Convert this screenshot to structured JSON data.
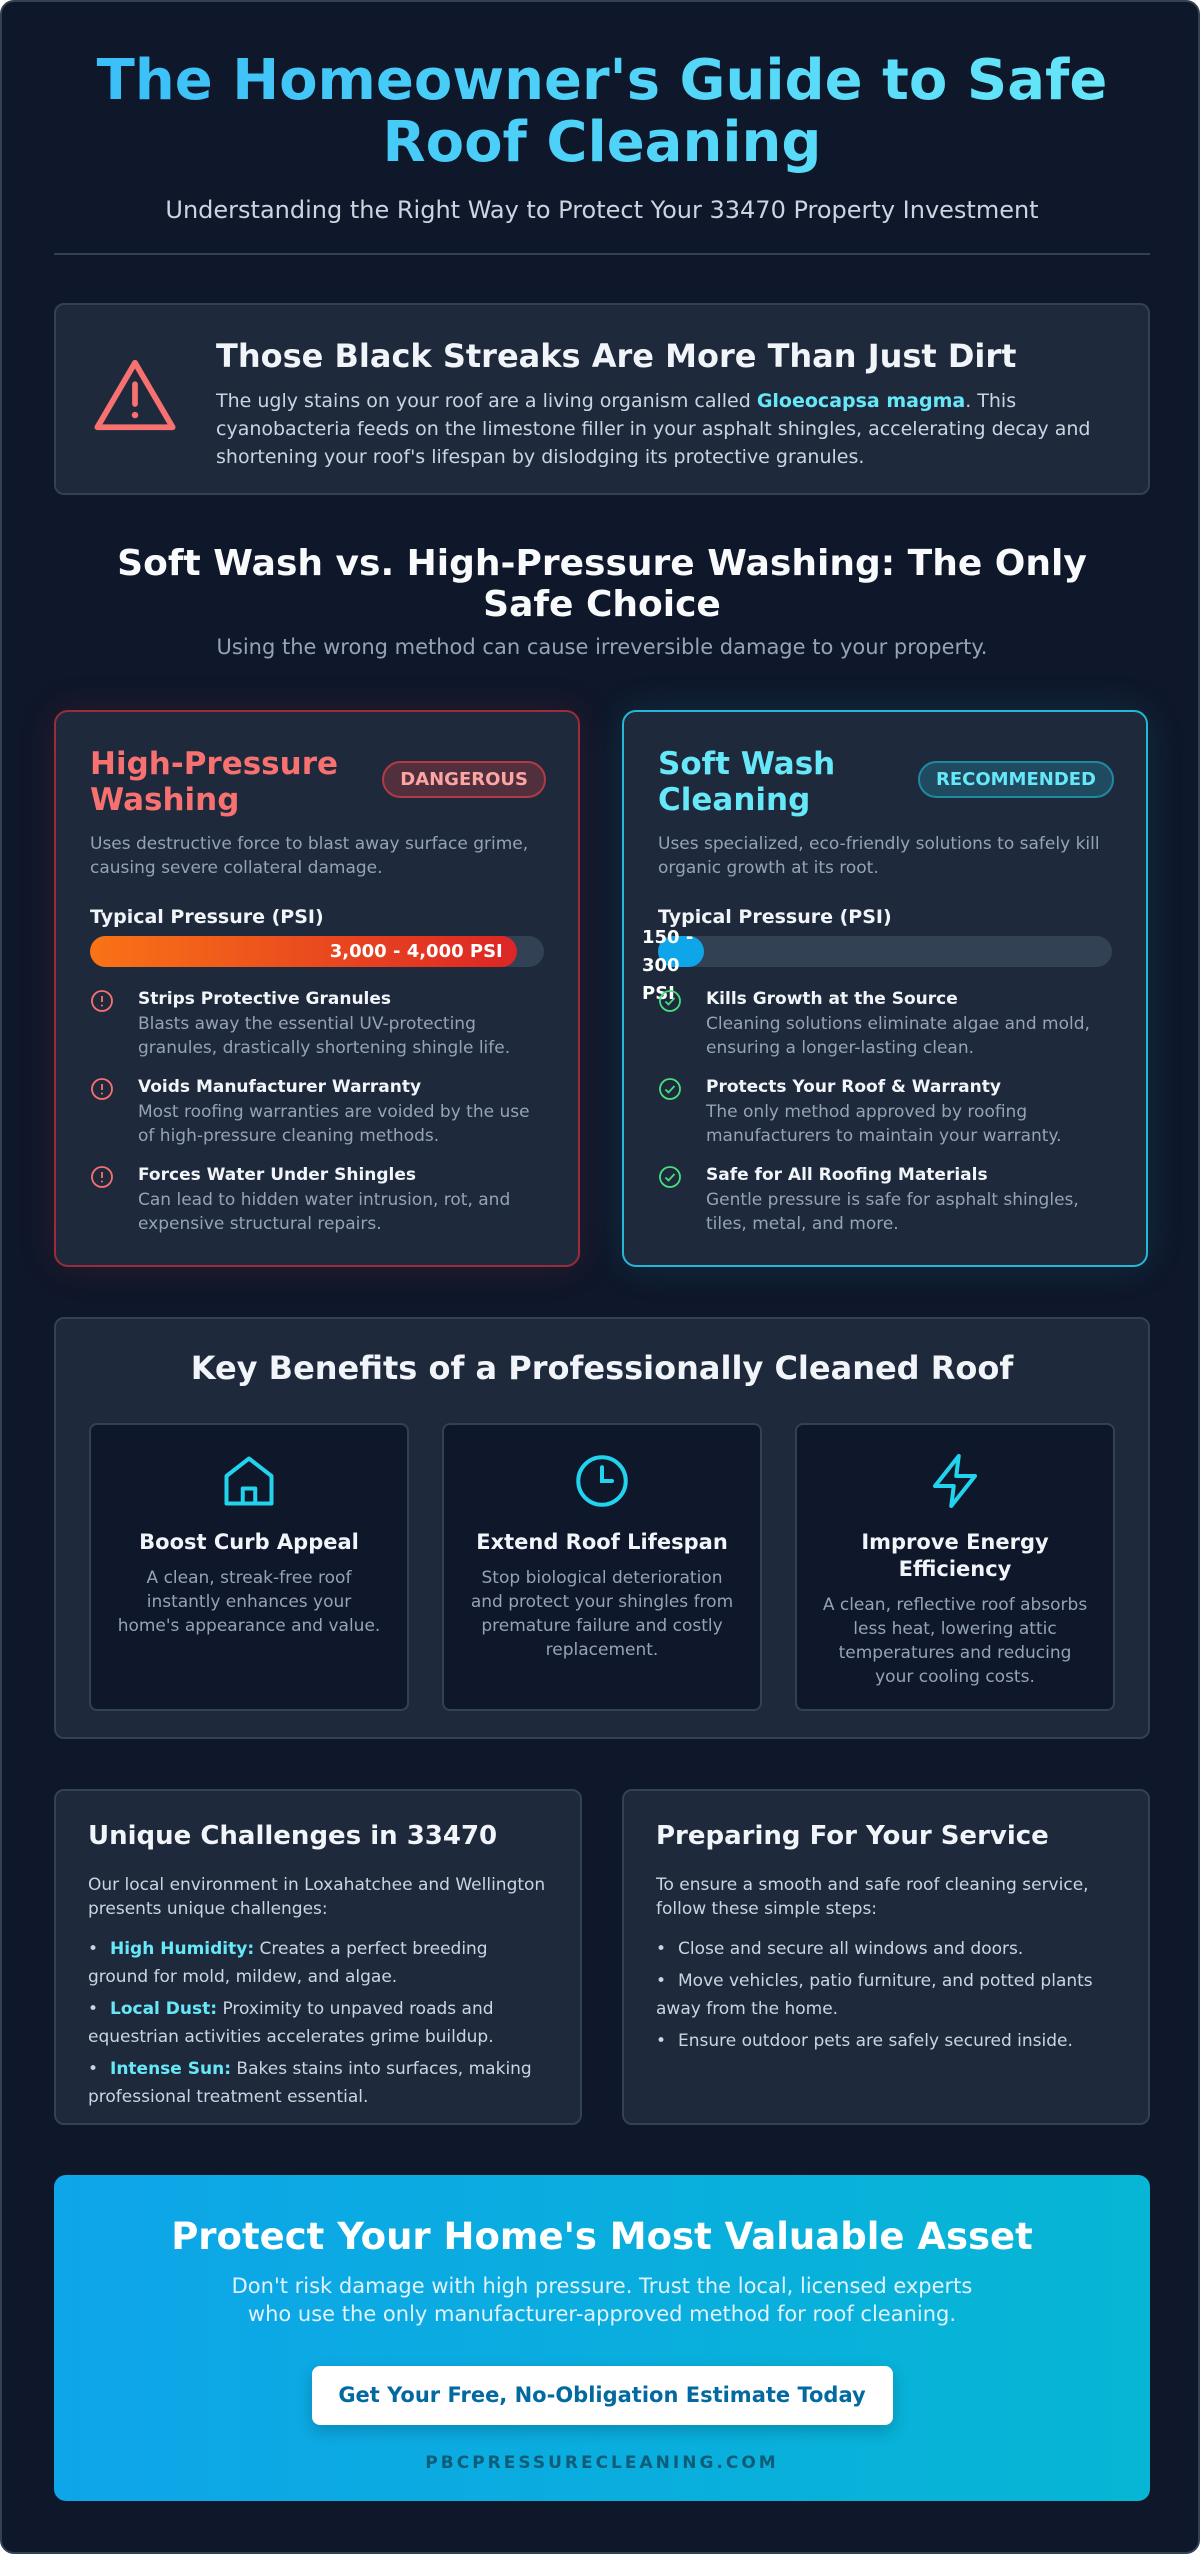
{
  "header": {
    "title": "The Homeowner's Guide to Safe Roof Cleaning",
    "subtitle": "Understanding the Right Way to Protect Your 33470 Property Investment"
  },
  "alert": {
    "title": "Those Black Streaks Are More Than Just Dirt",
    "text_before": "The ugly stains on your roof are a living organism called ",
    "highlight": "Gloeocapsa magma",
    "text_after": ". This cyanobacteria feeds on the limestone filler in your asphalt shingles, accelerating decay and shortening your roof's lifespan by dislodging its protective granules."
  },
  "comparison": {
    "title": "Soft Wash vs. High-Pressure Washing: The Only Safe Choice",
    "subtitle": "Using the wrong method can cause irreversible damage to your property.",
    "cards": [
      {
        "title": "High-Pressure Washing",
        "badge": "DANGEROUS",
        "description": "Uses destructive force to blast away surface grime, causing severe collateral damage.",
        "pressure_label": "Typical Pressure (PSI)",
        "pressure_value": "3,000 - 4,000 PSI",
        "items": [
          {
            "title": "Strips Protective Granules",
            "text": "Blasts away the essential UV-protecting granules, drastically shortening shingle life."
          },
          {
            "title": "Voids Manufacturer Warranty",
            "text": "Most roofing warranties are voided by the use of high-pressure cleaning methods."
          },
          {
            "title": "Forces Water Under Shingles",
            "text": "Can lead to hidden water intrusion, rot, and expensive structural repairs."
          }
        ]
      },
      {
        "title": "Soft Wash Cleaning",
        "badge": "RECOMMENDED",
        "description": "Uses specialized, eco-friendly solutions to safely kill organic growth at its root.",
        "pressure_label": "Typical Pressure (PSI)",
        "pressure_value": "150 - 300 PSI",
        "items": [
          {
            "title": "Kills Growth at the Source",
            "text": "Cleaning solutions eliminate algae and mold, ensuring a longer-lasting clean."
          },
          {
            "title": "Protects Your Roof & Warranty",
            "text": "The only method approved by roofing manufacturers to maintain your warranty."
          },
          {
            "title": "Safe for All Roofing Materials",
            "text": "Gentle pressure is safe for asphalt shingles, tiles, metal, and more."
          }
        ]
      }
    ]
  },
  "benefits": {
    "title": "Key Benefits of a Professionally Cleaned Roof",
    "items": [
      {
        "title": "Boost Curb Appeal",
        "text": "A clean, streak-free roof instantly enhances your home's appearance and value."
      },
      {
        "title": "Extend Roof Lifespan",
        "text": "Stop biological deterioration and protect your shingles from premature failure and costly replacement."
      },
      {
        "title": "Improve Energy Efficiency",
        "text": "A clean, reflective roof absorbs less heat, lowering attic temperatures and reducing your cooling costs."
      }
    ]
  },
  "challenges": {
    "title": "Unique Challenges in 33470",
    "intro": "Our local environment in Loxahatchee and Wellington presents unique challenges:",
    "items": [
      {
        "label": "High Humidity:",
        "text": " Creates a perfect breeding ground for mold, mildew, and algae."
      },
      {
        "label": "Local Dust:",
        "text": " Proximity to unpaved roads and equestrian activities accelerates grime buildup."
      },
      {
        "label": "Intense Sun:",
        "text": " Bakes stains into surfaces, making professional treatment essential."
      }
    ]
  },
  "preparing": {
    "title": "Preparing For Your Service",
    "intro": "To ensure a smooth and safe roof cleaning service, follow these simple steps:",
    "items": [
      "Close and secure all windows and doors.",
      "Move vehicles, patio furniture, and potted plants away from the home.",
      "Ensure outdoor pets are safely secured inside."
    ]
  },
  "cta": {
    "title": "Protect Your Home's Most Valuable Asset",
    "text": "Don't risk damage with high pressure. Trust the local, licensed experts who use the only manufacturer-approved method for roof cleaning.",
    "button": "Get Your Free, No-Obligation Estimate Today",
    "url": "PBCPRESSURECLEANING.COM"
  }
}
